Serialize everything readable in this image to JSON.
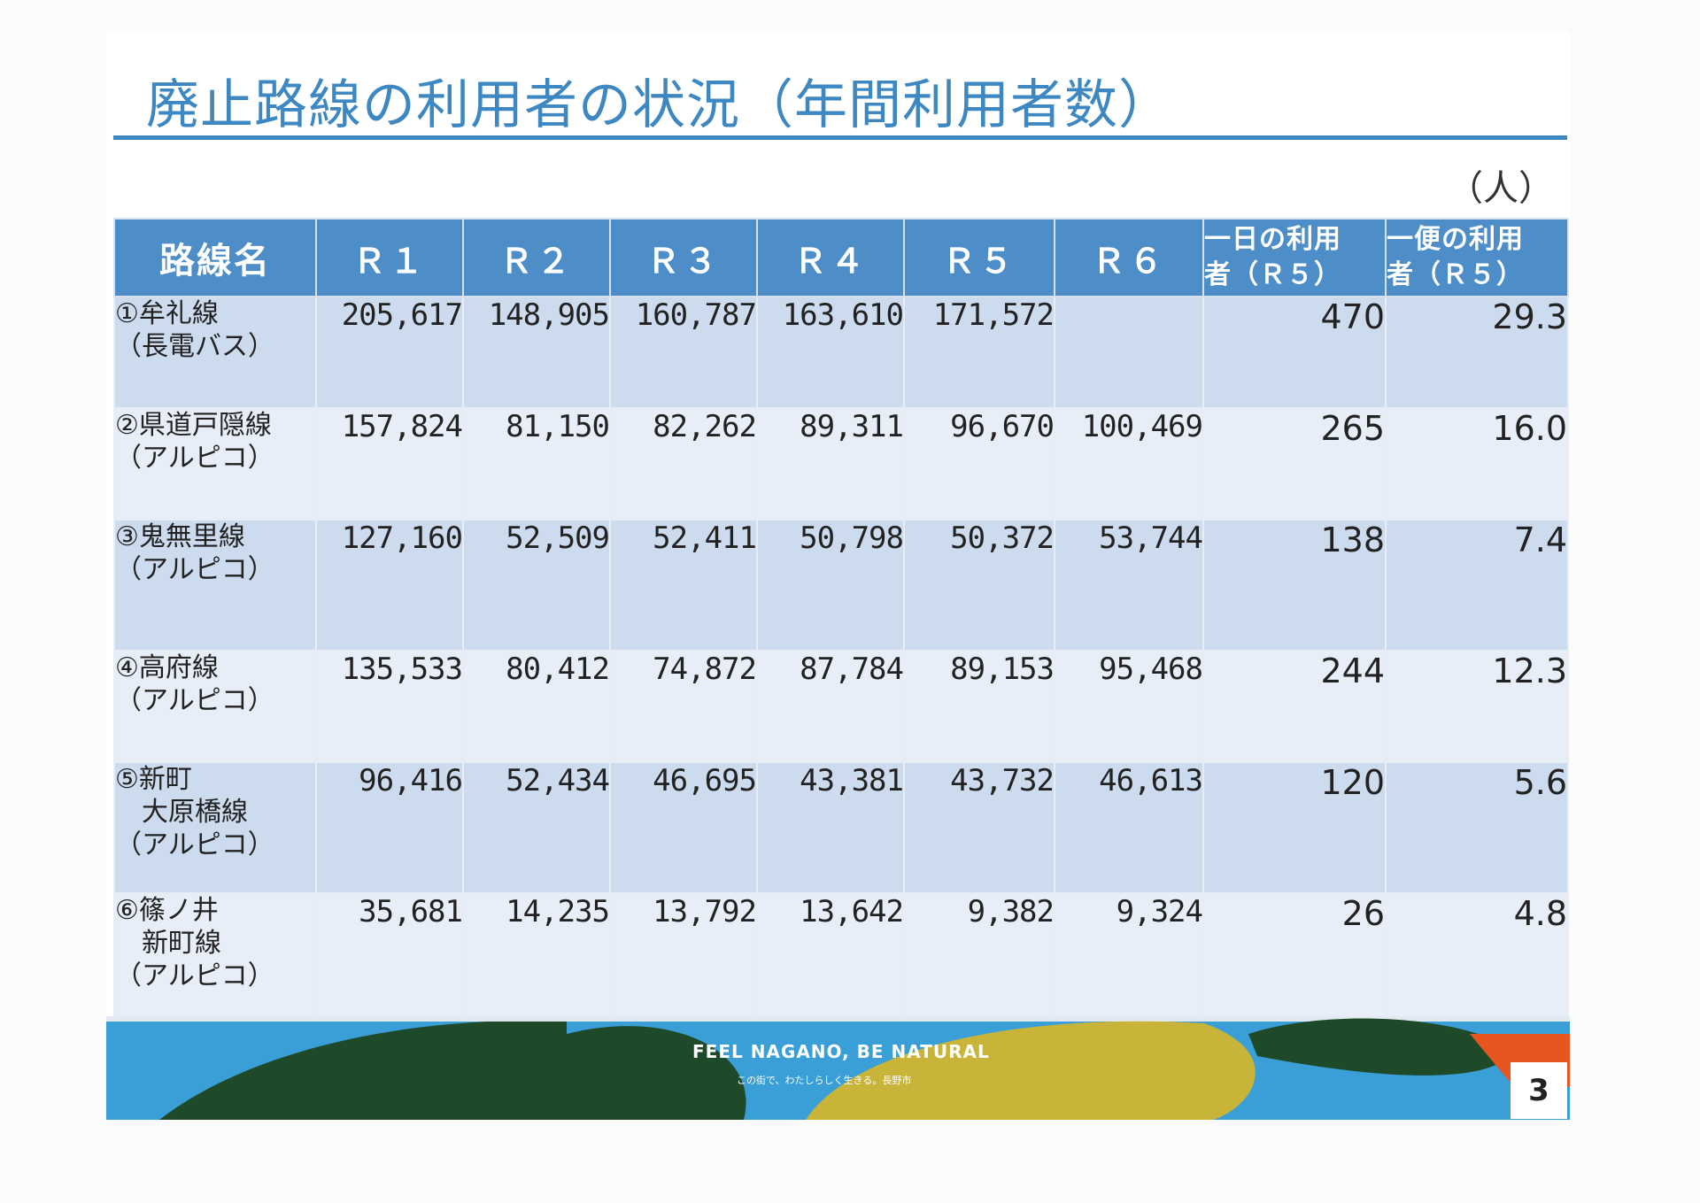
{
  "title": "廃止路線の利用者の状況（年間利用者数）",
  "unit": "（人）",
  "headers": [
    "路線名",
    "Ｒ１",
    "Ｒ２",
    "Ｒ３",
    "Ｒ４",
    "Ｒ５",
    "Ｒ６",
    "一日の利用\n者（Ｒ５）",
    "一便の利用\n者（Ｒ５）"
  ],
  "rows": [
    {
      "name": "①牟礼線\n（長電バス）",
      "r1": "205,617",
      "r2": "148,905",
      "r3": "160,787",
      "r4": "163,610",
      "r5": "171,572",
      "r6": "",
      "daily": "470",
      "per_trip": "29.3"
    },
    {
      "name": "②県道戸隠線\n（アルピコ）",
      "r1": "157,824",
      "r2": "81,150",
      "r3": "82,262",
      "r4": "89,311",
      "r5": "96,670",
      "r6": "100,469",
      "daily": "265",
      "per_trip": "16.0"
    },
    {
      "name": "③鬼無里線\n（アルピコ）",
      "r1": "127,160",
      "r2": "52,509",
      "r3": "52,411",
      "r4": "50,798",
      "r5": "50,372",
      "r6": "53,744",
      "daily": "138",
      "per_trip": "7.4"
    },
    {
      "name": "④高府線\n（アルピコ）",
      "r1": "135,533",
      "r2": "80,412",
      "r3": "74,872",
      "r4": "87,784",
      "r5": "89,153",
      "r6": "95,468",
      "daily": "244",
      "per_trip": "12.3"
    },
    {
      "name": "⑤新町\n　大原橋線\n（アルピコ）",
      "r1": "96,416",
      "r2": "52,434",
      "r3": "46,695",
      "r4": "43,381",
      "r5": "43,732",
      "r6": "46,613",
      "daily": "120",
      "per_trip": "5.6"
    },
    {
      "name": "⑥篠ノ井\n　新町線\n（アルピコ）",
      "r1": "35,681",
      "r2": "14,235",
      "r3": "13,792",
      "r4": "13,642",
      "r5": "9,382",
      "r6": "9,324",
      "daily": "26",
      "per_trip": "4.8"
    }
  ],
  "footer": {
    "tagline": "FEEL NAGANO, BE NATURAL",
    "sub": "この街で、わたしらしく生きる。長野市"
  },
  "page_number": "3",
  "colors": {
    "accent": "#3d87c2",
    "header_bg": "#4d8ec9",
    "row_dark": "#ccdbee",
    "row_light": "#e7eef7",
    "footer_blue": "#3a9fd6",
    "footer_green": "#1e4a2a",
    "footer_yellow": "#c9b43a",
    "footer_orange": "#e8561f"
  }
}
